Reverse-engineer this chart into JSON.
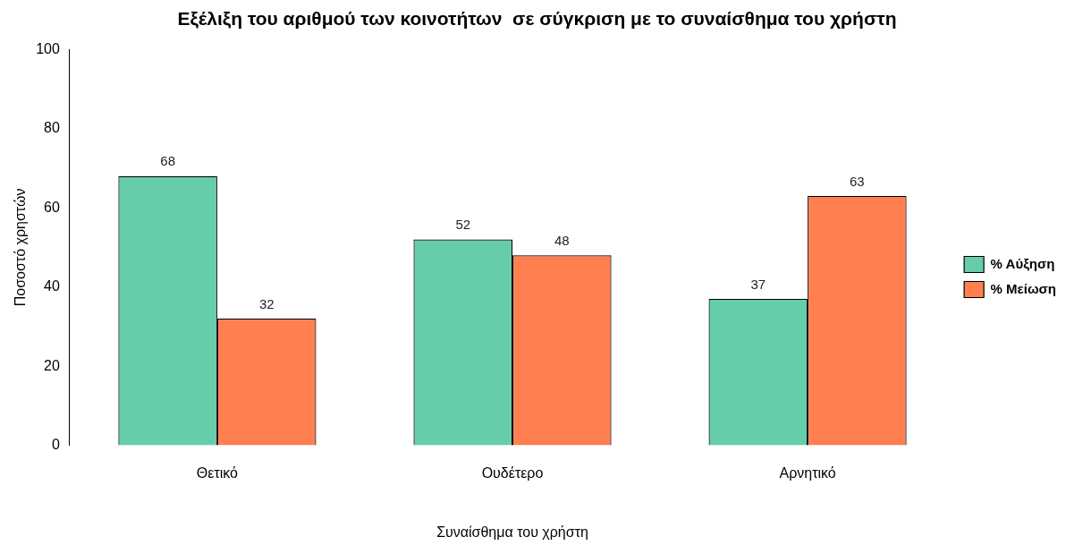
{
  "chart_data": {
    "type": "bar",
    "title": "Εξέλιξη του αριθμού των κοινοτήτων  σε σύγκριση με το συναίσθημα του χρήστη",
    "xlabel": "Συναίσθημα του χρήστη",
    "ylabel": "Ποσοστό χρηστών",
    "categories": [
      "Θετικό",
      "Ουδέτερο",
      "Αρνητικό"
    ],
    "series": [
      {
        "name": "% Αύξηση",
        "color": "#66cdaa",
        "values": [
          68,
          52,
          37
        ]
      },
      {
        "name": "% Μείωση",
        "color": "#ff7f50",
        "values": [
          32,
          48,
          63
        ]
      }
    ],
    "ylim": [
      0,
      100
    ],
    "yticks": [
      0,
      20,
      40,
      60,
      80,
      100
    ],
    "grid": false,
    "legend": "right",
    "data_labels": true
  }
}
